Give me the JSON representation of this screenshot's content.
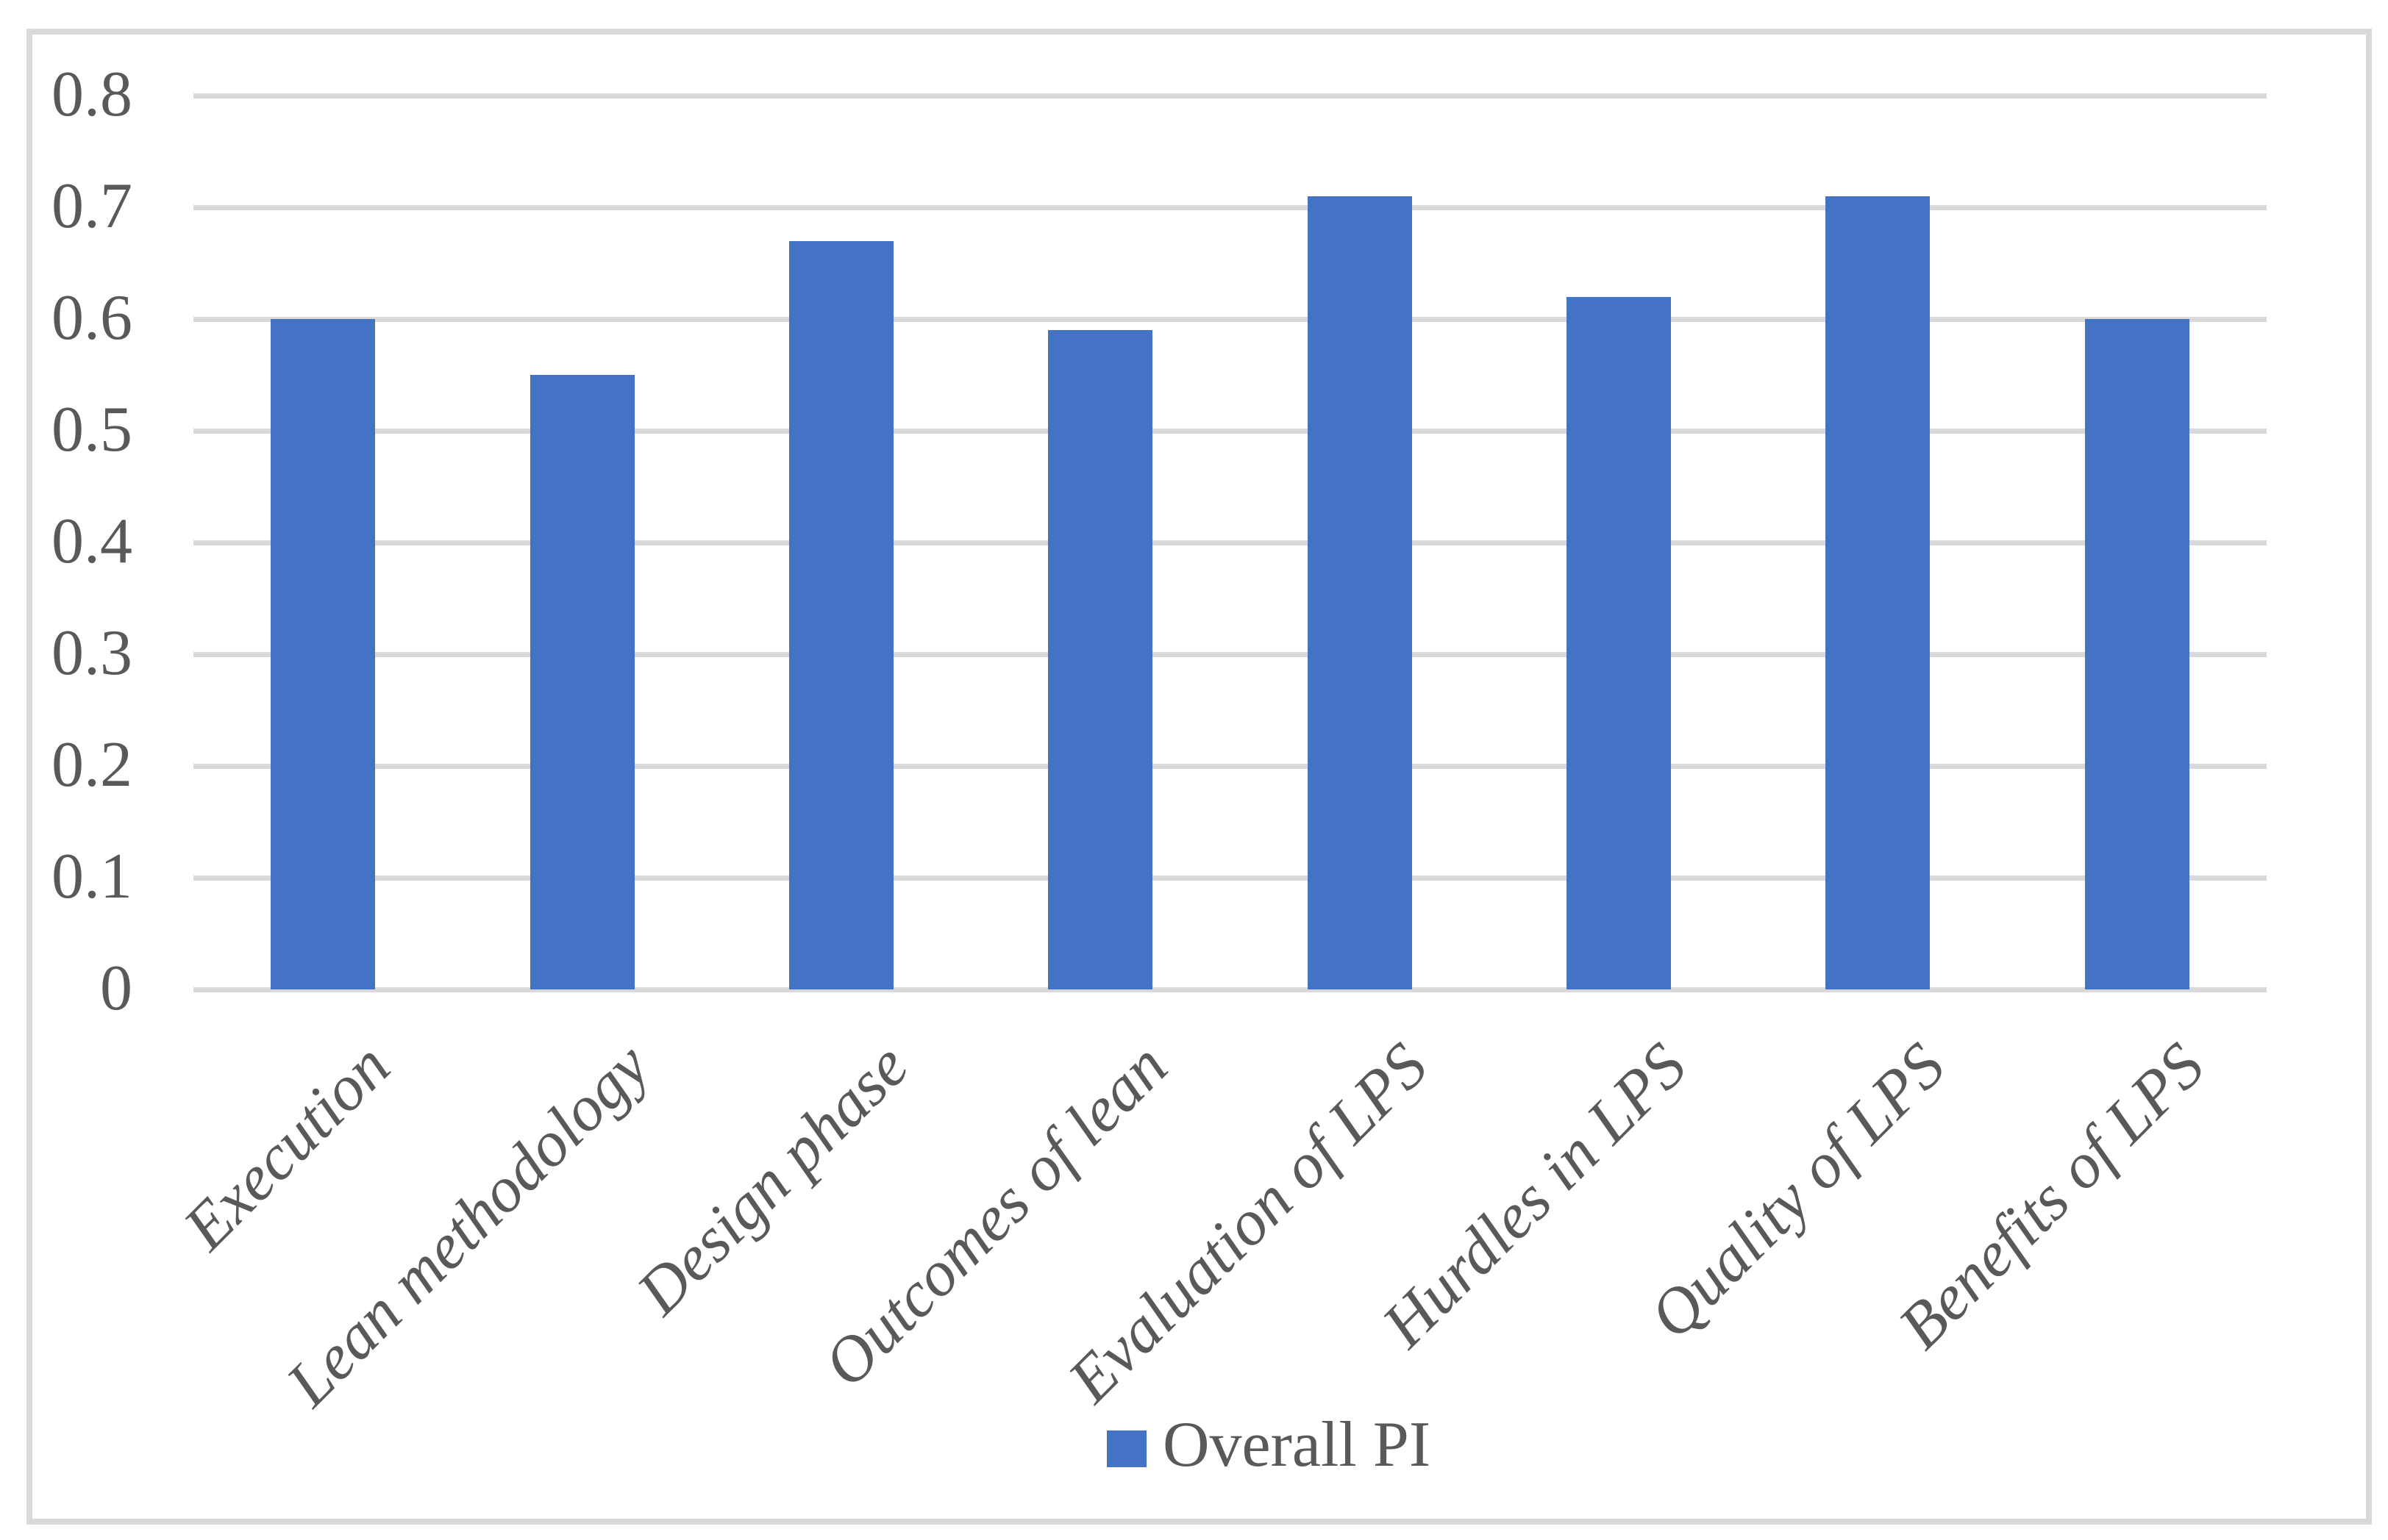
{
  "chart_data": {
    "type": "bar",
    "title": "",
    "xlabel": "",
    "ylabel": "",
    "categories": [
      "Execution",
      "Lean methodology",
      "Design phase",
      "Outcomes of lean",
      "Evaluation of LPS",
      "Hurdles in LPS",
      "Quality of LPS",
      "Benefits of LPS"
    ],
    "series": [
      {
        "name": "Overall PI",
        "values": [
          0.6,
          0.55,
          0.67,
          0.59,
          0.71,
          0.62,
          0.71,
          0.6
        ]
      }
    ],
    "ylim": [
      0,
      0.8
    ],
    "yticks": [
      0,
      0.1,
      0.2,
      0.3,
      0.4,
      0.5,
      0.6,
      0.7,
      0.8
    ],
    "ytick_labels": [
      "0",
      "0.1",
      "0.2",
      "0.3",
      "0.4",
      "0.5",
      "0.6",
      "0.7",
      "0.8"
    ],
    "grid": "horizontal",
    "legend_position": "bottom",
    "colors": {
      "bar": "#4472C4",
      "gridline": "#D9D9D9",
      "frame_border": "#D9D9D9",
      "text": "#595959"
    }
  },
  "legend": {
    "label": "Overall PI",
    "swatch_color": "#4472C4"
  }
}
